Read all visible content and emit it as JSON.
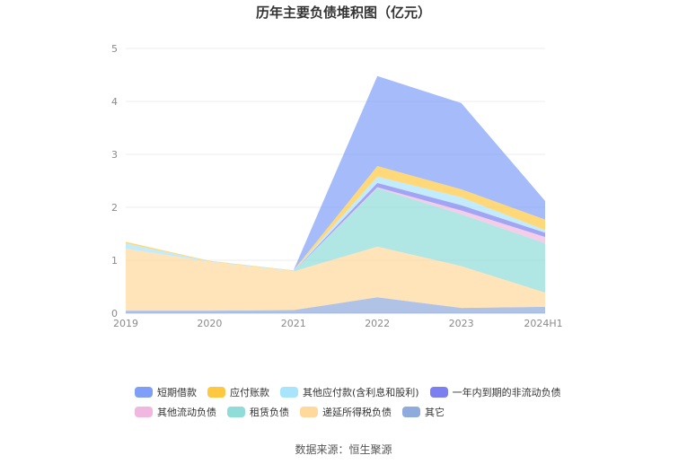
{
  "chart_data": {
    "type": "area",
    "stacked": true,
    "title": "历年主要负债堆积图（亿元）",
    "categories": [
      "2019",
      "2020",
      "2021",
      "2022",
      "2023",
      "2024H1"
    ],
    "y_ticks": [
      "0",
      "1",
      "2",
      "3",
      "4",
      "5"
    ],
    "ylim": [
      0,
      5
    ],
    "grid": true,
    "legend_position": "bottom",
    "series": [
      {
        "name": "其它",
        "color": "#8faadc",
        "values": [
          0.05,
          0.05,
          0.06,
          0.3,
          0.1,
          0.12
        ]
      },
      {
        "name": "递延所得税负债",
        "color": "#ffd89b",
        "values": [
          1.17,
          0.92,
          0.73,
          0.96,
          0.79,
          0.27
        ]
      },
      {
        "name": "租赁负债",
        "color": "#8fdcd9",
        "values": [
          0.0,
          0.0,
          0.0,
          1.1,
          0.98,
          0.93
        ]
      },
      {
        "name": "其他流动负债",
        "color": "#f0b8e0",
        "values": [
          0.0,
          0.0,
          0.0,
          0.02,
          0.07,
          0.12
        ]
      },
      {
        "name": "一年内到期的非流动负债",
        "color": "#7b7ff0",
        "values": [
          0.0,
          0.0,
          0.0,
          0.08,
          0.1,
          0.08
        ]
      },
      {
        "name": "其他应付款(含利息和股利)",
        "color": "#a8e4fb",
        "values": [
          0.1,
          0.01,
          0.01,
          0.12,
          0.15,
          0.05
        ]
      },
      {
        "name": "应付账款",
        "color": "#ffc840",
        "values": [
          0.03,
          0.01,
          0.01,
          0.2,
          0.15,
          0.2
        ]
      },
      {
        "name": "短期借款",
        "color": "#7f9ef8",
        "values": [
          0.0,
          0.0,
          0.0,
          1.7,
          1.63,
          0.35
        ]
      }
    ],
    "legend_order": [
      "短期借款",
      "应付账款",
      "其他应付款(含利息和股利)",
      "一年内到期的非流动负债",
      "其他流动负债",
      "租赁负债",
      "递延所得税负债",
      "其它"
    ],
    "source": "数据来源：恒生聚源"
  }
}
